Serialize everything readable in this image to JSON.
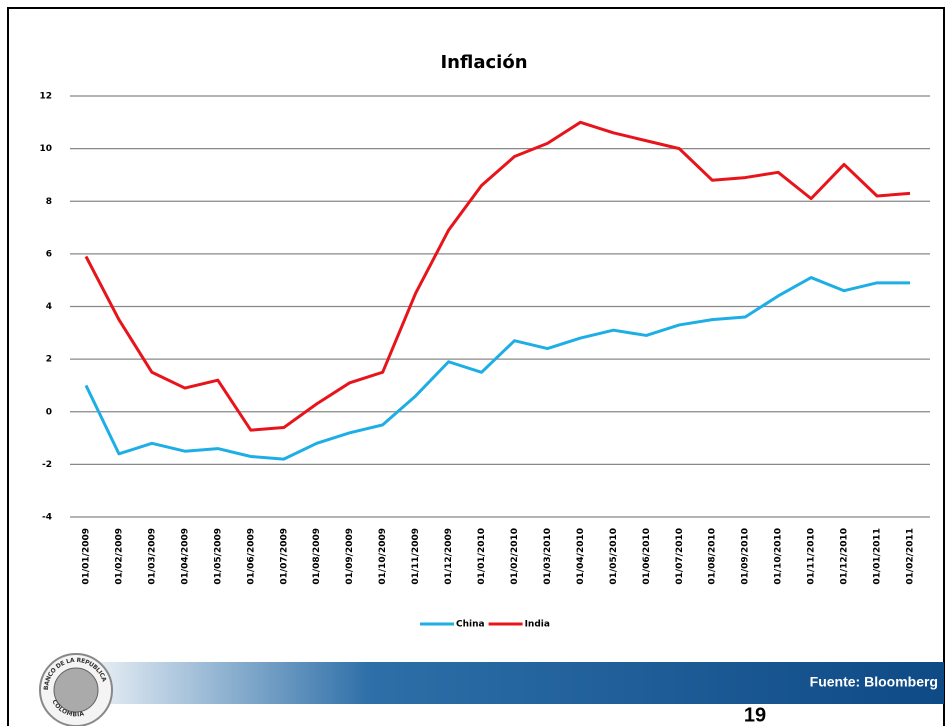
{
  "chart_data": {
    "type": "line",
    "title": "Inflación",
    "categories": [
      "01/01/2009",
      "01/02/2009",
      "01/03/2009",
      "01/04/2009",
      "01/05/2009",
      "01/06/2009",
      "01/07/2009",
      "01/08/2009",
      "01/09/2009",
      "01/10/2009",
      "01/11/2009",
      "01/12/2009",
      "01/01/2010",
      "01/02/2010",
      "01/03/2010",
      "01/04/2010",
      "01/05/2010",
      "01/06/2010",
      "01/07/2010",
      "01/08/2010",
      "01/09/2010",
      "01/10/2010",
      "01/11/2010",
      "01/12/2010",
      "01/01/2011",
      "01/02/2011"
    ],
    "series": [
      {
        "name": "China",
        "color": "#1eaee6",
        "values": [
          1.0,
          -1.6,
          -1.2,
          -1.5,
          -1.4,
          -1.7,
          -1.8,
          -1.2,
          -0.8,
          -0.5,
          0.6,
          1.9,
          1.5,
          2.7,
          2.4,
          2.8,
          3.1,
          2.9,
          3.3,
          3.5,
          3.6,
          4.4,
          5.1,
          4.6,
          4.9,
          4.9
        ]
      },
      {
        "name": "India",
        "color": "#e8141b",
        "values": [
          5.9,
          3.5,
          1.5,
          0.9,
          1.2,
          -0.7,
          -0.6,
          0.3,
          1.1,
          1.5,
          4.5,
          6.9,
          8.6,
          9.7,
          10.2,
          11.0,
          10.6,
          10.3,
          10.0,
          8.8,
          8.9,
          9.1,
          8.1,
          9.4,
          8.2,
          8.3
        ]
      }
    ],
    "ylim": [
      -4,
      12
    ],
    "yticks": [
      12,
      10,
      8,
      6,
      4,
      2,
      0,
      -2,
      -4
    ],
    "grid": true,
    "legend": "bottom"
  },
  "footer": {
    "source": "Fuente: Bloomberg",
    "page_number": "19",
    "logo_text": [
      "BANCO DE LA REPUBLICA",
      "COLOMBIA"
    ]
  }
}
